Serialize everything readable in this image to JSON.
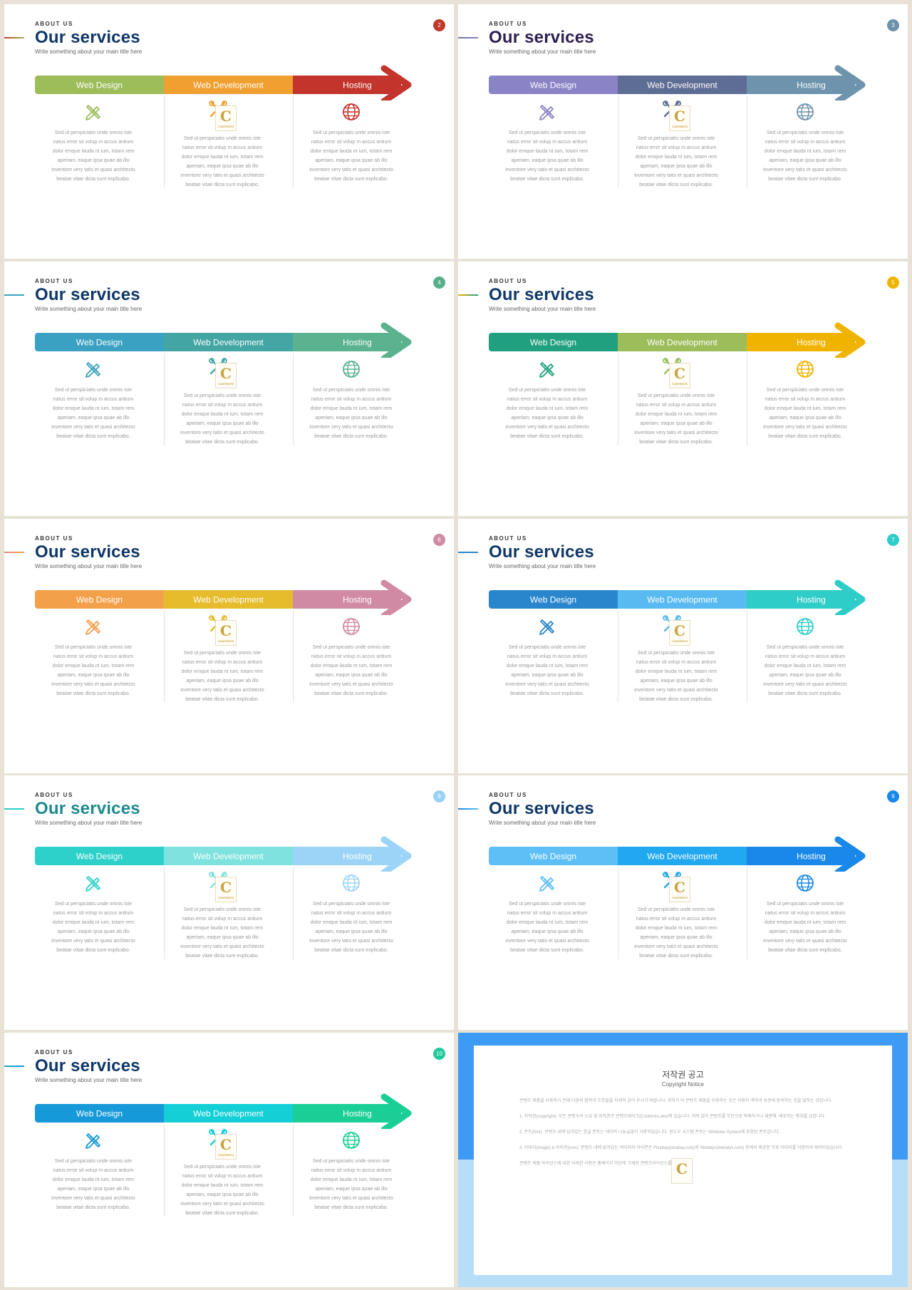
{
  "common": {
    "eyebrow": "ABOUT US",
    "title": "Our services",
    "subtitle": "Write something about your main title here",
    "steps": [
      "Web Design",
      "Web Development",
      "Hosting"
    ],
    "description": "Sed ut perspiciatis unde omnis iste natus error sit volup m accus antium dolor emque lauda nt ium, totam rem aperiam, eaque ipsa quae ab illo inventore very tatis et quasi architecto beatae vitae dicta sunt explicabo.",
    "icons": [
      "pencil-ruler-icon",
      "tools-logo-icon",
      "globe-icon"
    ],
    "logo_text": "C",
    "logo_caption": "CONTENTS"
  },
  "slides": [
    {
      "page": "2",
      "title_color": "#0f3768",
      "num_color": "#c0392b",
      "line_color": "#c0392b",
      "colors": [
        "#9cbd5a",
        "#f0a030",
        "#c2342c"
      ]
    },
    {
      "page": "3",
      "title_color": "#2e1f4f",
      "num_color": "#6d91a8",
      "line_color": "#6c78a0",
      "colors": [
        "#8a84c6",
        "#5e6d93",
        "#6d94ac"
      ]
    },
    {
      "page": "4",
      "title_color": "#0f3768",
      "num_color": "#55b08a",
      "line_color": "#3a9dc0",
      "colors": [
        "#3aa1c2",
        "#44a6a4",
        "#5ab38e"
      ]
    },
    {
      "page": "5",
      "title_color": "#0f3768",
      "num_color": "#f0b400",
      "line_color": "#f0b400",
      "colors": [
        "#21a07f",
        "#9cbd5a",
        "#f0b400"
      ]
    },
    {
      "page": "6",
      "title_color": "#0f3768",
      "num_color": "#d08aa4",
      "line_color": "#e68a8a",
      "colors": [
        "#f3a04a",
        "#e6bc2c",
        "#d18aa3"
      ]
    },
    {
      "page": "7",
      "title_color": "#0f3768",
      "num_color": "#2ecdc9",
      "line_color": "#2a85cc",
      "colors": [
        "#2a86cc",
        "#58baf0",
        "#2ecdc8"
      ]
    },
    {
      "page": "8",
      "title_color": "#1d8a8d",
      "num_color": "#9ad2f6",
      "line_color": "#2ecdc9",
      "colors": [
        "#2ed1c9",
        "#7ee2de",
        "#9cd4f8"
      ]
    },
    {
      "page": "9",
      "title_color": "#0f3768",
      "num_color": "#1787e8",
      "line_color": "#1787e8",
      "colors": [
        "#5ebff6",
        "#21a8f0",
        "#1a88e8"
      ]
    },
    {
      "page": "10",
      "title_color": "#0f3768",
      "num_color": "#1ec99b",
      "line_color": "#1ea8c8",
      "colors": [
        "#1599d8",
        "#13cfd6",
        "#19cf95"
      ]
    }
  ],
  "copyright": {
    "title": "저작권 공고",
    "subtitle": "Copyright Notice",
    "paragraphs": [
      "콘텐츠 제품을 사용하기 전에 다음의 협약과 조항들을 자세히 읽어 주시기 바랍니다. 귀하가 이 콘텐츠 제품을 이용하는 것은 이용자 계약과 보증에 동의하는 것을 말하는 것입니다.",
      "1. 저작권(copyright): 모든 콘텐츠의 소유 및 저작권은 콘텐츠레이크(ContentsLake)에 있습니다. 허락 없이 콘텐츠를 무단으로 복제하거나 재판매, 배포하는 행위를 금합니다.",
      "2. 폰트(font): 콘텐츠 내에 담겨있는 한글 폰트는 네이버 나눔글꼴이 사용되었습니다. 윈도우 시스템 폰트는 Windows System에 포함된 폰트입니다.",
      "3. 이미지(image) & 아이콘(icon): 콘텐츠 내에 담겨있는 이미지와 아이콘은 Pixabay(pixabay.com)와 Webalys(webalys.com) 등에서 제공한 무료 이미지를 이용하여 제작되었습니다.",
      "콘텐츠 제품 라이선스에 대한 자세한 사항은 홈페이지 하단에 기재된 콘텐츠라이선스를 참조하세요."
    ],
    "colors": [
      "#3d9bf5",
      "#b6def8"
    ]
  }
}
